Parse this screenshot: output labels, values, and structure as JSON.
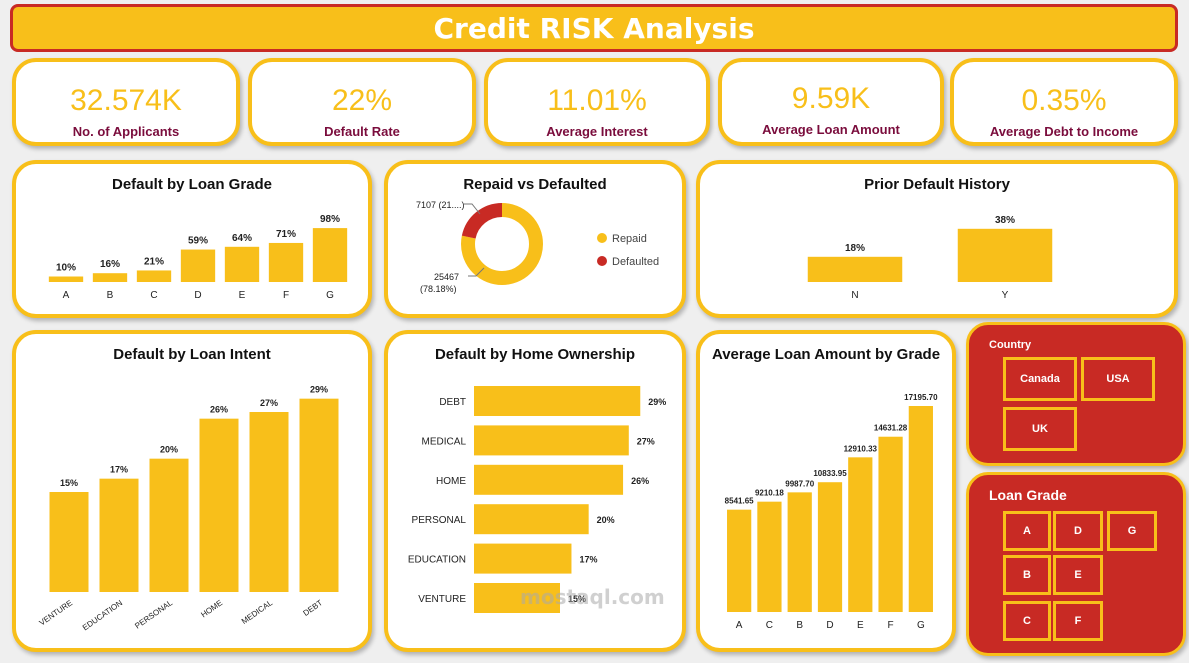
{
  "title": "Credit RISK Analysis",
  "kpis": [
    {
      "value": "32.574K",
      "label": "No. of Applicants"
    },
    {
      "value": "22%",
      "label": "Default Rate"
    },
    {
      "value": "11.01%",
      "label": "Average Interest"
    },
    {
      "value": "9.59K",
      "label": "Average Loan Amount"
    },
    {
      "value": "0.35%",
      "label": "Average Debt to Income"
    }
  ],
  "colors": {
    "accent": "#f8bf1a",
    "brand_red": "#c82a24",
    "kpi_label": "#7a0c3c",
    "repaid": "#f8bf1a",
    "defaulted": "#c82a24"
  },
  "chart_data": [
    {
      "type": "bar",
      "title": "Default by Loan Grade",
      "categories": [
        "A",
        "B",
        "C",
        "D",
        "E",
        "F",
        "G"
      ],
      "values": [
        10,
        16,
        21,
        59,
        64,
        71,
        98
      ],
      "labels": [
        "10%",
        "16%",
        "21%",
        "59%",
        "64%",
        "71%",
        "98%"
      ]
    },
    {
      "type": "pie",
      "title": "Repaid vs Defaulted",
      "categories": [
        "Repaid",
        "Defaulted"
      ],
      "values": [
        25467,
        7107
      ],
      "labels": [
        "25467\n(78.18%)",
        "7107 (21....)"
      ],
      "legend": "right"
    },
    {
      "type": "bar",
      "title": "Prior Default History",
      "categories": [
        "N",
        "Y"
      ],
      "values": [
        18,
        38
      ],
      "labels": [
        "18%",
        "38%"
      ]
    },
    {
      "type": "bar",
      "title": "Default by Loan Intent",
      "categories": [
        "VENTURE",
        "EDUCATION",
        "PERSONAL",
        "HOME",
        "MEDICAL",
        "DEBT"
      ],
      "values": [
        15,
        17,
        20,
        26,
        27,
        29
      ],
      "labels": [
        "15%",
        "17%",
        "20%",
        "26%",
        "27%",
        "29%"
      ]
    },
    {
      "type": "bar",
      "orientation": "horizontal",
      "title": "Default by Home Ownership",
      "categories": [
        "DEBT",
        "MEDICAL",
        "HOME",
        "PERSONAL",
        "EDUCATION",
        "VENTURE"
      ],
      "values": [
        29,
        27,
        26,
        20,
        17,
        15
      ],
      "labels": [
        "29%",
        "27%",
        "26%",
        "20%",
        "17%",
        "15%"
      ]
    },
    {
      "type": "bar",
      "title": "Average Loan Amount by Grade",
      "categories": [
        "A",
        "C",
        "B",
        "D",
        "E",
        "F",
        "G"
      ],
      "values": [
        8541.65,
        9210.18,
        9987.7,
        10833.95,
        12910.33,
        14631.28,
        17195.7
      ],
      "labels": [
        "8541.65",
        "9210.18",
        "9987.70",
        "10833.95",
        "12910.33",
        "14631.28",
        "17195.70"
      ]
    }
  ],
  "slicers": {
    "country": {
      "title": "Country",
      "options": [
        "Canada",
        "USA",
        "UK"
      ]
    },
    "grade": {
      "title": "Loan Grade",
      "options": [
        "A",
        "D",
        "G",
        "B",
        "E",
        "C",
        "F"
      ]
    }
  },
  "watermark": "mostaql.com"
}
